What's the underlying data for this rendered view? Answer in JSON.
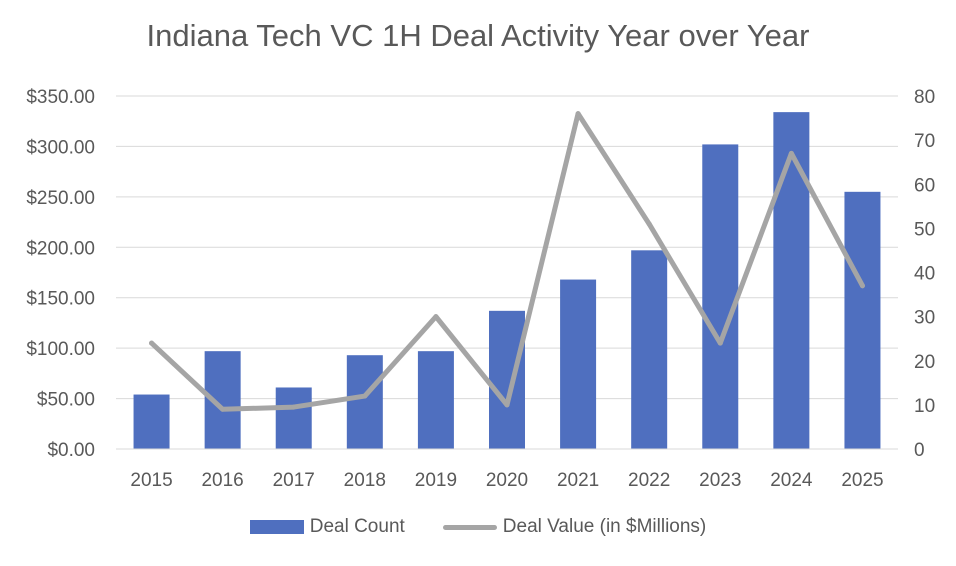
{
  "chart_data": {
    "type": "bar",
    "title": "Indiana Tech VC 1H Deal Activity Year over Year",
    "categories": [
      "2015",
      "2016",
      "2017",
      "2018",
      "2019",
      "2020",
      "2021",
      "2022",
      "2023",
      "2024",
      "2025"
    ],
    "series": [
      {
        "name": "Deal Count",
        "type": "bar",
        "axis": "left",
        "color": "#4f6fbf",
        "values": [
          54,
          97,
          61,
          93,
          97,
          137,
          168,
          197,
          302,
          334,
          255
        ]
      },
      {
        "name": "Deal Value (in $Millions)",
        "type": "line",
        "axis": "right",
        "color": "#a5a5a5",
        "values": [
          24,
          9,
          9.5,
          12,
          30,
          10,
          76,
          51,
          24,
          67,
          37
        ]
      }
    ],
    "left_axis": {
      "ylim": [
        0,
        350
      ],
      "ticks": [
        0,
        50,
        100,
        150,
        200,
        250,
        300,
        350
      ],
      "tick_labels": [
        "$0.00",
        "$50.00",
        "$100.00",
        "$150.00",
        "$200.00",
        "$250.00",
        "$300.00",
        "$350.00"
      ]
    },
    "right_axis": {
      "ylim": [
        0,
        80
      ],
      "ticks": [
        0,
        10,
        20,
        30,
        40,
        50,
        60,
        70,
        80
      ],
      "tick_labels": [
        "0",
        "10",
        "20",
        "30",
        "40",
        "50",
        "60",
        "70",
        "80"
      ]
    },
    "grid": true,
    "legend_position": "bottom"
  }
}
